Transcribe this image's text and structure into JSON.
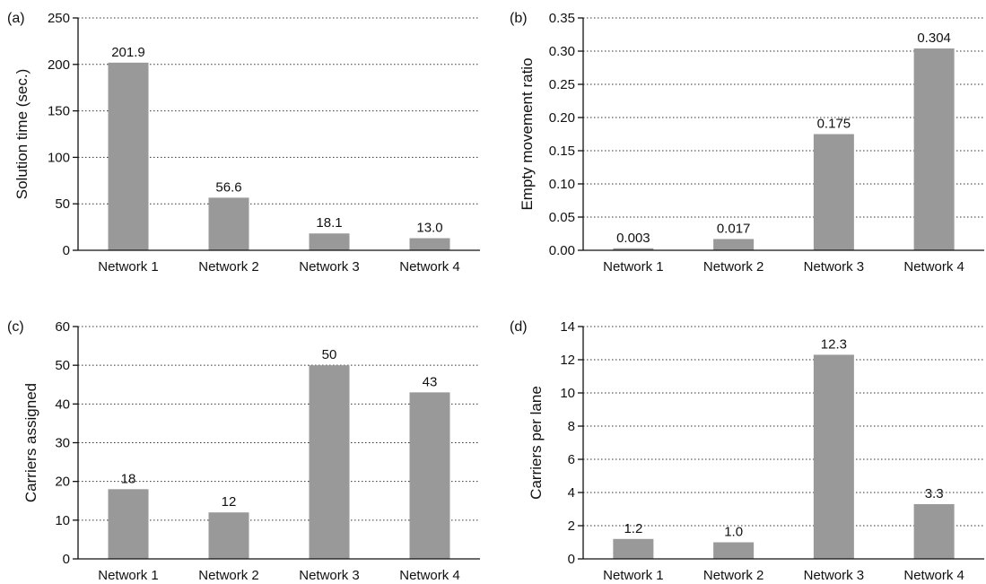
{
  "colors": {
    "bar": "#999999",
    "axis": "#111111",
    "grid": "#333333"
  },
  "chart_data": [
    {
      "panel": "(a)",
      "type": "bar",
      "categories": [
        "Network 1",
        "Network 2",
        "Network 3",
        "Network 4"
      ],
      "values": [
        201.9,
        56.6,
        18.1,
        13.0
      ],
      "value_labels": [
        "201.9",
        "56.6",
        "18.1",
        "13.0"
      ],
      "ylabel": "Solution time (sec.)",
      "ylim": [
        0,
        250
      ],
      "yticks": [
        0,
        50,
        100,
        150,
        200,
        250
      ],
      "ytick_labels": [
        "0",
        "50",
        "100",
        "150",
        "200",
        "250"
      ],
      "grid": true
    },
    {
      "panel": "(b)",
      "type": "bar",
      "categories": [
        "Network 1",
        "Network 2",
        "Network 3",
        "Network 4"
      ],
      "values": [
        0.003,
        0.017,
        0.175,
        0.304
      ],
      "value_labels": [
        "0.003",
        "0.017",
        "0.175",
        "0.304"
      ],
      "ylabel": "Empty movement ratio",
      "ylim": [
        0,
        0.35
      ],
      "yticks": [
        0,
        0.05,
        0.1,
        0.15,
        0.2,
        0.25,
        0.3,
        0.35
      ],
      "ytick_labels": [
        "0.00",
        "0.05",
        "0.10",
        "0.15",
        "0.20",
        "0.25",
        "0.30",
        "0.35"
      ],
      "grid": true
    },
    {
      "panel": "(c)",
      "type": "bar",
      "categories": [
        "Network 1",
        "Network 2",
        "Network 3",
        "Network 4"
      ],
      "values": [
        18,
        12,
        50,
        43
      ],
      "value_labels": [
        "18",
        "12",
        "50",
        "43"
      ],
      "ylabel": "Carriers assigned",
      "ylim": [
        0,
        60
      ],
      "yticks": [
        0,
        10,
        20,
        30,
        40,
        50,
        60
      ],
      "ytick_labels": [
        "0",
        "10",
        "20",
        "30",
        "40",
        "50",
        "60"
      ],
      "grid": true
    },
    {
      "panel": "(d)",
      "type": "bar",
      "categories": [
        "Network 1",
        "Network 2",
        "Network 3",
        "Network 4"
      ],
      "values": [
        1.2,
        1.0,
        12.3,
        3.3
      ],
      "value_labels": [
        "1.2",
        "1.0",
        "12.3",
        "3.3"
      ],
      "ylabel": "Carriers per lane",
      "ylim": [
        0,
        14
      ],
      "yticks": [
        0,
        2,
        4,
        6,
        8,
        10,
        12,
        14
      ],
      "ytick_labels": [
        "0",
        "2",
        "4",
        "6",
        "8",
        "10",
        "12",
        "14"
      ],
      "grid": true
    }
  ]
}
